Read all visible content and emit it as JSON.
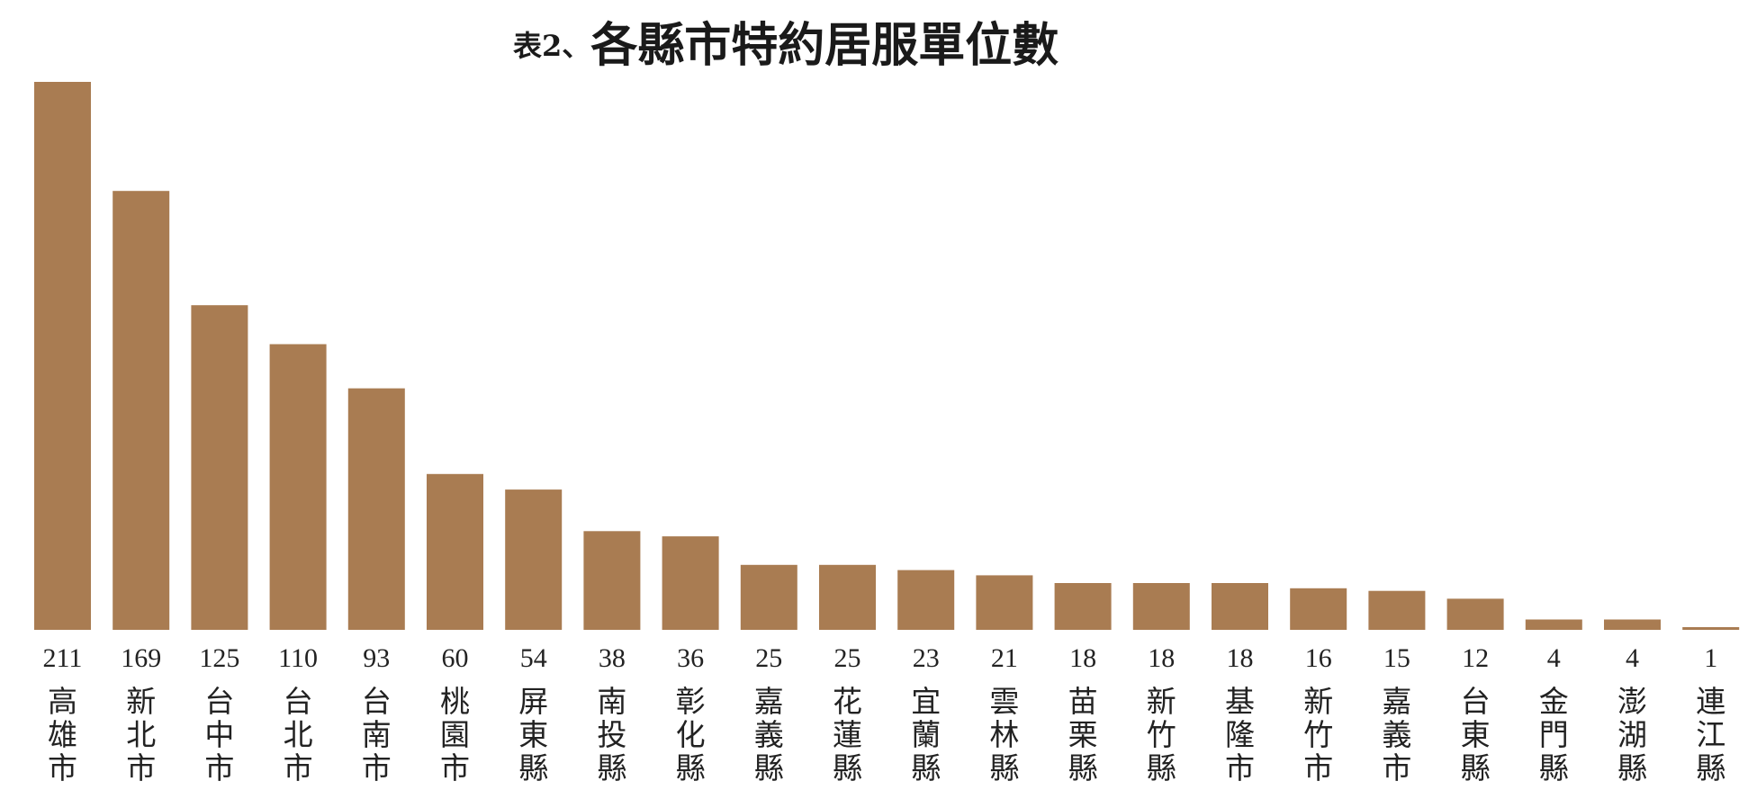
{
  "title": {
    "prefix": "表2、",
    "main": "各縣市特約居服單位數"
  },
  "chart_data": {
    "type": "bar",
    "title": "表2、各縣市特約居服單位數",
    "xlabel": "",
    "ylabel": "",
    "ylim": [
      0,
      211
    ],
    "grid": false,
    "legend": "none",
    "bar_color": "#a97c52",
    "categories": [
      "高雄市",
      "新北市",
      "台中市",
      "台北市",
      "台南市",
      "桃園市",
      "屏東縣",
      "南投縣",
      "彰化縣",
      "嘉義縣",
      "花蓮縣",
      "宜蘭縣",
      "雲林縣",
      "苗栗縣",
      "新竹縣",
      "基隆市",
      "新竹市",
      "嘉義市",
      "台東縣",
      "金門縣",
      "澎湖縣",
      "連江縣"
    ],
    "values": [
      211,
      169,
      125,
      110,
      93,
      60,
      54,
      38,
      36,
      25,
      25,
      23,
      21,
      18,
      18,
      18,
      16,
      15,
      12,
      4,
      4,
      1
    ]
  }
}
